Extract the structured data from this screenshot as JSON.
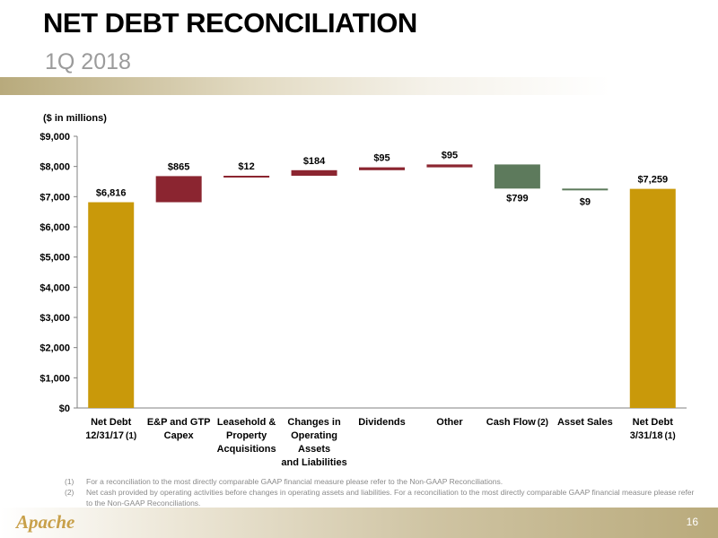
{
  "title": "NET DEBT RECONCILIATION",
  "subtitle": "1Q 2018",
  "unit_label": "($ in millions)",
  "footnotes": [
    {
      "num": "(1)",
      "text": "For a reconciliation to the most directly comparable GAAP financial measure please refer to the Non-GAAP Reconciliations."
    },
    {
      "num": "(2)",
      "text": "Net cash provided by operating activities before changes in operating assets and liabilities.  For a reconciliation to the most directly comparable GAAP financial measure please refer to the Non-GAAP Reconciliations."
    }
  ],
  "logo_text": "Apache",
  "page_number": "16",
  "colors": {
    "total": "#c9990a",
    "increase": "#8b2530",
    "decrease": "#5d7a5c",
    "axis": "#808080"
  },
  "chart_data": {
    "type": "bar",
    "subtype": "waterfall",
    "ylim": [
      0,
      9000
    ],
    "yticks": [
      "$0",
      "$1,000",
      "$2,000",
      "$3,000",
      "$4,000",
      "$5,000",
      "$6,000",
      "$7,000",
      "$8,000",
      "$9,000"
    ],
    "ytick_values": [
      0,
      1000,
      2000,
      3000,
      4000,
      5000,
      6000,
      7000,
      8000,
      9000
    ],
    "grid": false,
    "categories": [
      {
        "lines": [
          "Net Debt",
          "12/31/17"
        ],
        "note": "(1)"
      },
      {
        "lines": [
          "E&P and GTP",
          "Capex"
        ],
        "note": ""
      },
      {
        "lines": [
          "Leasehold &",
          "Property",
          "Acquisitions"
        ],
        "note": ""
      },
      {
        "lines": [
          "Changes in",
          "Operating",
          "Assets",
          "and Liabilities"
        ],
        "note": ""
      },
      {
        "lines": [
          "Dividends"
        ],
        "note": ""
      },
      {
        "lines": [
          "Other"
        ],
        "note": ""
      },
      {
        "lines": [
          "Cash Flow"
        ],
        "note": "(2)"
      },
      {
        "lines": [
          "Asset Sales"
        ],
        "note": ""
      },
      {
        "lines": [
          "Net Debt",
          "3/31/18"
        ],
        "note": "(1)"
      }
    ],
    "bars": [
      {
        "kind": "total",
        "start": 0,
        "end": 6816,
        "label": "$6,816"
      },
      {
        "kind": "increase",
        "start": 6816,
        "end": 7681,
        "label": "$865"
      },
      {
        "kind": "increase",
        "start": 7681,
        "end": 7693,
        "label": "$12"
      },
      {
        "kind": "increase",
        "start": 7693,
        "end": 7877,
        "label": "$184"
      },
      {
        "kind": "increase",
        "start": 7877,
        "end": 7972,
        "label": "$95"
      },
      {
        "kind": "increase",
        "start": 7972,
        "end": 8067,
        "label": "$95"
      },
      {
        "kind": "decrease",
        "start": 8067,
        "end": 7268,
        "label": "$799"
      },
      {
        "kind": "decrease",
        "start": 7268,
        "end": 7259,
        "label": "$9"
      },
      {
        "kind": "total",
        "start": 0,
        "end": 7259,
        "label": "$7,259"
      }
    ]
  }
}
